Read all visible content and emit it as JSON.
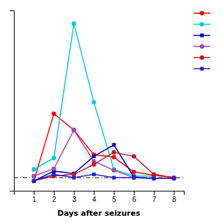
{
  "chart_data": {
    "type": "line",
    "x_label": "Days after seizures",
    "xlim": [
      0,
      8.5
    ],
    "ylim": [
      -50,
      1050
    ],
    "xticks": [
      1,
      2,
      3,
      4,
      5,
      6,
      7,
      8
    ],
    "yticks": [],
    "tick_labels": "x",
    "hline": 30,
    "legend": "right",
    "series": [
      {
        "color": "#ff0000",
        "marker": "circle",
        "x": [
          1,
          2,
          3,
          4,
          5,
          6,
          7,
          8
        ],
        "values": [
          10,
          420,
          320,
          170,
          155,
          65,
          45,
          30
        ]
      },
      {
        "color": "#00ccdd",
        "marker": "circle",
        "x": [
          1,
          2,
          3,
          4,
          5,
          6,
          7
        ],
        "values": [
          80,
          150,
          970,
          490,
          80,
          40,
          40
        ]
      },
      {
        "color": "#0000bb",
        "marker": "square",
        "x": [
          1,
          2,
          3,
          4,
          5,
          6,
          7,
          8
        ],
        "values": [
          10,
          70,
          55,
          160,
          230,
          35,
          25,
          25
        ]
      },
      {
        "color": "#aa44bb",
        "marker": "circle",
        "x": [
          1,
          2,
          3,
          4,
          5,
          6,
          7,
          8
        ],
        "values": [
          40,
          85,
          320,
          130,
          75,
          30,
          25,
          25
        ]
      },
      {
        "color": "#cc1122",
        "marker": "circle",
        "x": [
          1,
          2,
          3,
          4,
          5,
          6,
          7,
          8
        ],
        "values": [
          10,
          40,
          50,
          110,
          185,
          160,
          50,
          30
        ]
      },
      {
        "color": "#2222cc",
        "marker": "square",
        "x": [
          1,
          2,
          3,
          4,
          5,
          6,
          7,
          8
        ],
        "values": [
          10,
          50,
          30,
          50,
          30,
          30,
          25,
          25
        ]
      }
    ]
  }
}
